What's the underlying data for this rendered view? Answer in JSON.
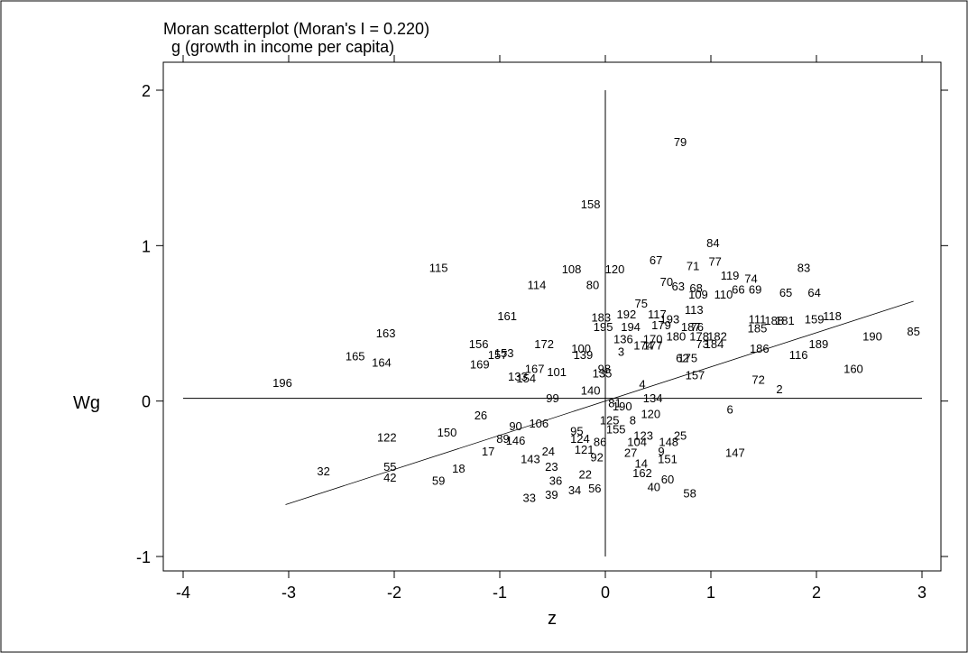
{
  "chart_data": {
    "type": "scatter",
    "title": "Moran scatterplot (Moran's I = 0.220)",
    "subtitle": "g  (growth in income per capita)",
    "xlabel": "z",
    "ylabel": "Wg",
    "xlim": [
      -4.2,
      3.0
    ],
    "ylim": [
      -1.1,
      2.0
    ],
    "xticks": [
      -4,
      -3,
      -2,
      -1,
      0,
      1,
      2,
      3
    ],
    "yticks": [
      -1,
      0,
      1,
      2
    ],
    "grid": false,
    "regression_line": {
      "slope": 0.22,
      "intercept": 0.0,
      "x_range": [
        -3.03,
        2.92
      ]
    },
    "reference_lines": {
      "x": 0,
      "y": 0
    },
    "points": [
      {
        "label": "79",
        "x": 0.71,
        "y": 1.67
      },
      {
        "label": "158",
        "x": -0.14,
        "y": 1.27
      },
      {
        "label": "84",
        "x": 1.02,
        "y": 1.02
      },
      {
        "label": "67",
        "x": 0.48,
        "y": 0.91
      },
      {
        "label": "71",
        "x": 0.83,
        "y": 0.87
      },
      {
        "label": "77",
        "x": 1.04,
        "y": 0.9
      },
      {
        "label": "83",
        "x": 1.88,
        "y": 0.86
      },
      {
        "label": "115",
        "x": -1.58,
        "y": 0.86
      },
      {
        "label": "108",
        "x": -0.32,
        "y": 0.85
      },
      {
        "label": "120",
        "x": 0.09,
        "y": 0.85
      },
      {
        "label": "119",
        "x": 1.18,
        "y": 0.81
      },
      {
        "label": "74",
        "x": 1.38,
        "y": 0.79
      },
      {
        "label": "70",
        "x": 0.58,
        "y": 0.77
      },
      {
        "label": "63",
        "x": 0.69,
        "y": 0.74
      },
      {
        "label": "68",
        "x": 0.86,
        "y": 0.73
      },
      {
        "label": "66",
        "x": 1.26,
        "y": 0.72
      },
      {
        "label": "69",
        "x": 1.42,
        "y": 0.72
      },
      {
        "label": "65",
        "x": 1.71,
        "y": 0.7
      },
      {
        "label": "64",
        "x": 1.98,
        "y": 0.7
      },
      {
        "label": "110",
        "x": 1.12,
        "y": 0.69
      },
      {
        "label": "109",
        "x": 0.88,
        "y": 0.69
      },
      {
        "label": "114",
        "x": -0.65,
        "y": 0.75
      },
      {
        "label": "80",
        "x": -0.12,
        "y": 0.75
      },
      {
        "label": "75",
        "x": 0.34,
        "y": 0.63
      },
      {
        "label": "113",
        "x": 0.84,
        "y": 0.59
      },
      {
        "label": "192",
        "x": 0.2,
        "y": 0.56
      },
      {
        "label": "117",
        "x": 0.49,
        "y": 0.56
      },
      {
        "label": "161",
        "x": -0.93,
        "y": 0.55
      },
      {
        "label": "183",
        "x": -0.04,
        "y": 0.54
      },
      {
        "label": "193",
        "x": 0.61,
        "y": 0.53
      },
      {
        "label": "111",
        "x": 1.44,
        "y": 0.53
      },
      {
        "label": "188",
        "x": 1.6,
        "y": 0.52
      },
      {
        "label": "181",
        "x": 1.7,
        "y": 0.52
      },
      {
        "label": "159",
        "x": 1.98,
        "y": 0.53
      },
      {
        "label": "118",
        "x": 2.15,
        "y": 0.55
      },
      {
        "label": "195",
        "x": -0.02,
        "y": 0.48
      },
      {
        "label": "194",
        "x": 0.24,
        "y": 0.48
      },
      {
        "label": "179",
        "x": 0.53,
        "y": 0.49
      },
      {
        "label": "76",
        "x": 0.87,
        "y": 0.48
      },
      {
        "label": "187",
        "x": 0.81,
        "y": 0.48
      },
      {
        "label": "185",
        "x": 1.44,
        "y": 0.47
      },
      {
        "label": "85",
        "x": 2.92,
        "y": 0.45
      },
      {
        "label": "190",
        "x": 2.53,
        "y": 0.42
      },
      {
        "label": "163",
        "x": -2.08,
        "y": 0.44
      },
      {
        "label": "180",
        "x": 0.67,
        "y": 0.42
      },
      {
        "label": "178",
        "x": 0.89,
        "y": 0.42
      },
      {
        "label": "182",
        "x": 1.06,
        "y": 0.42
      },
      {
        "label": "136",
        "x": 0.17,
        "y": 0.4
      },
      {
        "label": "170",
        "x": 0.45,
        "y": 0.4
      },
      {
        "label": "189",
        "x": 2.02,
        "y": 0.37
      },
      {
        "label": "156",
        "x": -1.2,
        "y": 0.37
      },
      {
        "label": "172",
        "x": -0.58,
        "y": 0.37
      },
      {
        "label": "73",
        "x": 0.92,
        "y": 0.37
      },
      {
        "label": "184",
        "x": 1.03,
        "y": 0.37
      },
      {
        "label": "186",
        "x": 1.46,
        "y": 0.34
      },
      {
        "label": "174",
        "x": 0.36,
        "y": 0.36
      },
      {
        "label": "177",
        "x": 0.45,
        "y": 0.36
      },
      {
        "label": "100",
        "x": -0.23,
        "y": 0.34
      },
      {
        "label": "3",
        "x": 0.15,
        "y": 0.32
      },
      {
        "label": "139",
        "x": -0.21,
        "y": 0.3
      },
      {
        "label": "153",
        "x": -0.96,
        "y": 0.31
      },
      {
        "label": "157",
        "x": -1.02,
        "y": 0.3
      },
      {
        "label": "165",
        "x": -2.37,
        "y": 0.29
      },
      {
        "label": "116",
        "x": 1.83,
        "y": 0.3
      },
      {
        "label": "175",
        "x": 0.78,
        "y": 0.28
      },
      {
        "label": "62",
        "x": 0.73,
        "y": 0.28
      },
      {
        "label": "164",
        "x": -2.12,
        "y": 0.25
      },
      {
        "label": "169",
        "x": -1.19,
        "y": 0.24
      },
      {
        "label": "160",
        "x": 2.35,
        "y": 0.21
      },
      {
        "label": "167",
        "x": -0.67,
        "y": 0.21
      },
      {
        "label": "98",
        "x": -0.01,
        "y": 0.21
      },
      {
        "label": "101",
        "x": -0.46,
        "y": 0.19
      },
      {
        "label": "135",
        "x": -0.03,
        "y": 0.18
      },
      {
        "label": "157b",
        "x": 0.85,
        "y": 0.17
      },
      {
        "label": "133",
        "x": -0.83,
        "y": 0.16
      },
      {
        "label": "154",
        "x": -0.75,
        "y": 0.15
      },
      {
        "label": "72",
        "x": 1.45,
        "y": 0.14
      },
      {
        "label": "4",
        "x": 0.35,
        "y": 0.11
      },
      {
        "label": "2",
        "x": 1.65,
        "y": 0.08
      },
      {
        "label": "140",
        "x": -0.14,
        "y": 0.07
      },
      {
        "label": "196",
        "x": -3.06,
        "y": 0.12
      },
      {
        "label": "134",
        "x": 0.45,
        "y": 0.02
      },
      {
        "label": "99",
        "x": -0.5,
        "y": 0.02
      },
      {
        "label": "81",
        "x": 0.09,
        "y": -0.01
      },
      {
        "label": "190b",
        "x": 0.16,
        "y": -0.03
      },
      {
        "label": "6",
        "x": 1.18,
        "y": -0.05
      },
      {
        "label": "120b",
        "x": 0.43,
        "y": -0.08
      },
      {
        "label": "26",
        "x": -1.18,
        "y": -0.09
      },
      {
        "label": "106",
        "x": -0.63,
        "y": -0.14
      },
      {
        "label": "125",
        "x": 0.04,
        "y": -0.12
      },
      {
        "label": "8",
        "x": 0.26,
        "y": -0.12
      },
      {
        "label": "90",
        "x": -0.85,
        "y": -0.16
      },
      {
        "label": "150",
        "x": -1.5,
        "y": -0.2
      },
      {
        "label": "95",
        "x": -0.27,
        "y": -0.19
      },
      {
        "label": "155",
        "x": 0.1,
        "y": -0.18
      },
      {
        "label": "122",
        "x": -2.07,
        "y": -0.23
      },
      {
        "label": "89",
        "x": -0.97,
        "y": -0.24
      },
      {
        "label": "146",
        "x": -0.85,
        "y": -0.25
      },
      {
        "label": "124",
        "x": -0.24,
        "y": -0.24
      },
      {
        "label": "123",
        "x": 0.36,
        "y": -0.22
      },
      {
        "label": "25",
        "x": 0.71,
        "y": -0.22
      },
      {
        "label": "86",
        "x": -0.05,
        "y": -0.26
      },
      {
        "label": "104",
        "x": 0.3,
        "y": -0.26
      },
      {
        "label": "148",
        "x": 0.6,
        "y": -0.26
      },
      {
        "label": "17",
        "x": -1.11,
        "y": -0.32
      },
      {
        "label": "24",
        "x": -0.54,
        "y": -0.32
      },
      {
        "label": "121",
        "x": -0.2,
        "y": -0.31
      },
      {
        "label": "27",
        "x": 0.24,
        "y": -0.33
      },
      {
        "label": "9",
        "x": 0.53,
        "y": -0.32
      },
      {
        "label": "147",
        "x": 1.23,
        "y": -0.33
      },
      {
        "label": "143",
        "x": -0.71,
        "y": -0.37
      },
      {
        "label": "151",
        "x": 0.59,
        "y": -0.37
      },
      {
        "label": "92",
        "x": -0.08,
        "y": -0.36
      },
      {
        "label": "14",
        "x": 0.34,
        "y": -0.4
      },
      {
        "label": "55",
        "x": -2.04,
        "y": -0.42
      },
      {
        "label": "18",
        "x": -1.39,
        "y": -0.43
      },
      {
        "label": "32",
        "x": -2.67,
        "y": -0.45
      },
      {
        "label": "23",
        "x": -0.51,
        "y": -0.42
      },
      {
        "label": "162",
        "x": 0.35,
        "y": -0.46
      },
      {
        "label": "42",
        "x": -2.04,
        "y": -0.49
      },
      {
        "label": "22",
        "x": -0.19,
        "y": -0.47
      },
      {
        "label": "60",
        "x": 0.59,
        "y": -0.5
      },
      {
        "label": "59",
        "x": -1.58,
        "y": -0.51
      },
      {
        "label": "36",
        "x": -0.47,
        "y": -0.51
      },
      {
        "label": "40",
        "x": 0.46,
        "y": -0.55
      },
      {
        "label": "56",
        "x": -0.1,
        "y": -0.56
      },
      {
        "label": "34",
        "x": -0.29,
        "y": -0.57
      },
      {
        "label": "58",
        "x": 0.8,
        "y": -0.59
      },
      {
        "label": "39",
        "x": -0.51,
        "y": -0.6
      },
      {
        "label": "33",
        "x": -0.72,
        "y": -0.62
      }
    ]
  }
}
